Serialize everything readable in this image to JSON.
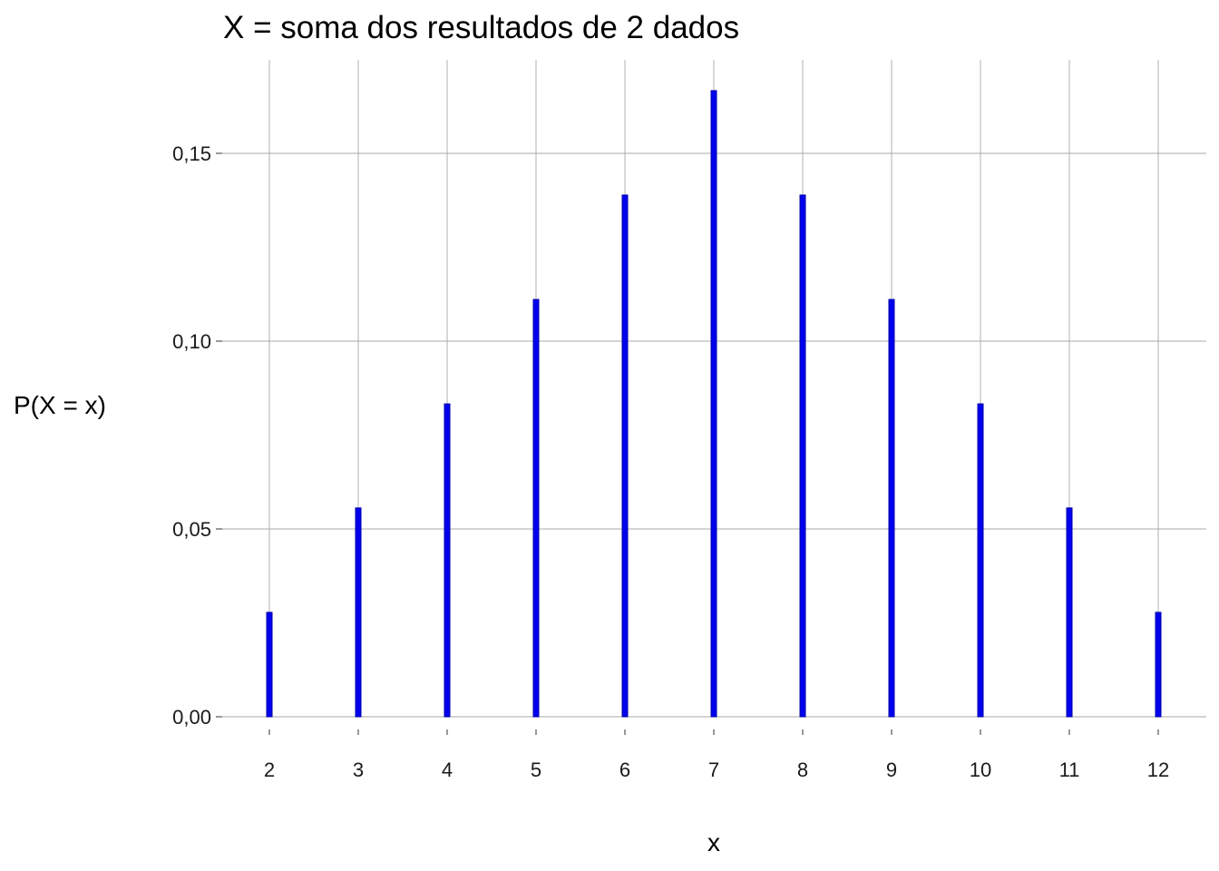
{
  "chart_data": {
    "type": "bar",
    "title": "X = soma dos resultados de 2 dados",
    "xlabel": "x",
    "ylabel": "P(X = x)",
    "categories": [
      "2",
      "3",
      "4",
      "5",
      "6",
      "7",
      "8",
      "9",
      "10",
      "11",
      "12"
    ],
    "x": [
      2,
      3,
      4,
      5,
      6,
      7,
      8,
      9,
      10,
      11,
      12
    ],
    "values": [
      0.0278,
      0.0556,
      0.0833,
      0.1111,
      0.1389,
      0.1667,
      0.1389,
      0.1111,
      0.0833,
      0.0556,
      0.0278
    ],
    "ylim": [
      0,
      0.17
    ],
    "yticks": [
      0,
      0.05,
      0.1,
      0.15
    ],
    "ytick_labels": [
      "0,00",
      "0,05",
      "0,10",
      "0,15"
    ],
    "xlim": [
      2,
      12
    ],
    "grid": true,
    "legend": "none",
    "bar_color": "#0000ee",
    "bar_edge_color": "#0000aa",
    "grid_color": "#a8a8a8",
    "background": "#ffffff"
  }
}
